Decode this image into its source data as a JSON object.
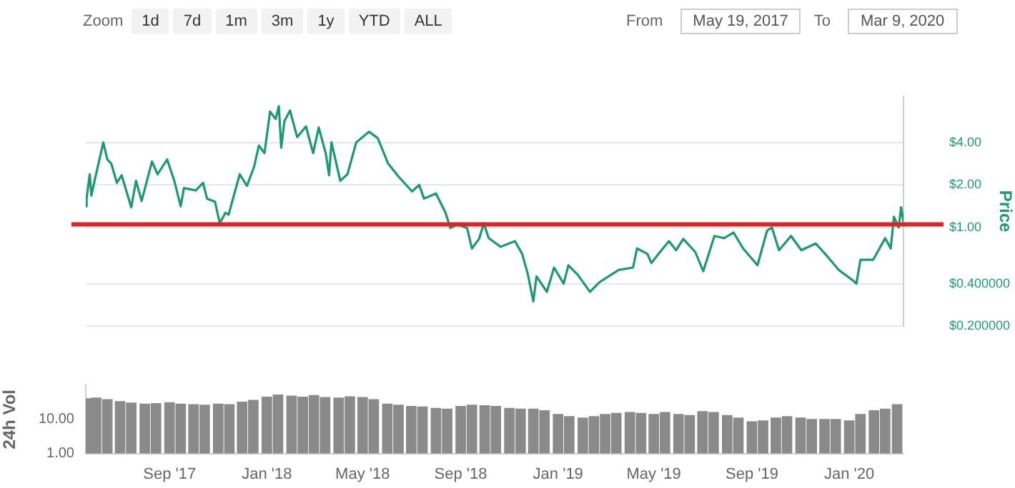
{
  "chart_data": [
    {
      "type": "line",
      "ylabel": "Price",
      "annotations": [
        "Zoom",
        "1d",
        "7d",
        "1m",
        "3m",
        "1y",
        "YTD",
        "ALL",
        "From",
        "May 19, 2017",
        "To",
        "Mar 9, 2020"
      ],
      "xlim": [
        "2017-05-19",
        "2020-03-09"
      ],
      "tick_labels": "y",
      "log": "y",
      "grid": "y",
      "ylim": [
        0.2,
        8.5
      ],
      "yticks": [
        {
          "value": 0.2,
          "label": "$0.200000"
        },
        {
          "value": 0.4,
          "label": "$0.400000"
        },
        {
          "value": 1,
          "label": "$1.00"
        },
        {
          "value": 2,
          "label": "$2.00"
        },
        {
          "value": 4,
          "label": "$4.00"
        }
      ],
      "ref_lines": [
        {
          "axis": "y",
          "value": 1.05,
          "color": "#d9262b"
        }
      ],
      "series": [
        {
          "color": "#1c9a6e",
          "x": [
            "2017-05-19",
            "2017-05-20",
            "2017-05-24",
            "2017-05-26",
            "2017-05-31",
            "2017-06-10",
            "2017-06-15",
            "2017-06-20",
            "2017-06-27",
            "2017-07-03",
            "2017-07-15",
            "2017-07-21",
            "2017-07-28",
            "2017-08-10",
            "2017-08-17",
            "2017-08-29",
            "2017-09-07",
            "2017-09-15",
            "2017-09-19",
            "2017-10-04",
            "2017-10-13",
            "2017-10-18",
            "2017-10-28",
            "2017-11-03",
            "2017-11-10",
            "2017-11-14",
            "2017-11-28",
            "2017-12-07",
            "2017-12-16",
            "2017-12-22",
            "2017-12-29",
            "2018-01-05",
            "2018-01-12",
            "2018-01-16",
            "2018-01-19",
            "2018-01-23",
            "2018-01-30",
            "2018-02-08",
            "2018-02-19",
            "2018-02-28",
            "2018-03-07",
            "2018-03-16",
            "2018-03-20",
            "2018-03-23",
            "2018-04-03",
            "2018-04-12",
            "2018-04-23",
            "2018-05-09",
            "2018-05-20",
            "2018-06-02",
            "2018-06-16",
            "2018-07-02",
            "2018-07-11",
            "2018-07-17",
            "2018-08-01",
            "2018-08-13",
            "2018-08-19",
            "2018-08-28",
            "2018-09-09",
            "2018-09-15",
            "2018-09-24",
            "2018-09-30",
            "2018-10-06",
            "2018-10-21",
            "2018-11-08",
            "2018-11-17",
            "2018-11-24",
            "2018-12-01",
            "2018-12-05",
            "2018-12-18",
            "2018-12-27",
            "2019-01-08",
            "2019-01-14",
            "2019-01-26",
            "2019-02-10",
            "2019-02-22",
            "2019-03-18",
            "2019-04-05",
            "2019-04-10",
            "2019-04-23",
            "2019-04-28",
            "2019-05-07",
            "2019-05-20",
            "2019-05-29",
            "2019-06-07",
            "2019-06-22",
            "2019-07-02",
            "2019-07-16",
            "2019-07-28",
            "2019-08-09",
            "2019-08-21",
            "2019-09-08",
            "2019-09-20",
            "2019-09-26",
            "2019-10-05",
            "2019-10-20",
            "2019-11-02",
            "2019-11-20",
            "2019-12-05",
            "2019-12-19",
            "2020-01-06",
            "2020-01-10",
            "2020-01-15",
            "2020-01-31",
            "2020-02-15",
            "2020-02-22",
            "2020-02-26",
            "2020-03-03",
            "2020-03-06",
            "2020-03-09"
          ],
          "values": [
            1.41,
            1.6,
            2.38,
            1.68,
            2.26,
            4.0,
            3.03,
            2.83,
            2.07,
            2.34,
            1.39,
            2.14,
            1.54,
            2.93,
            2.38,
            3.03,
            2.14,
            1.41,
            1.9,
            1.83,
            2.07,
            1.6,
            1.52,
            1.07,
            1.27,
            1.23,
            2.38,
            1.97,
            2.69,
            3.8,
            3.36,
            6.61,
            5.86,
            7.21,
            3.67,
            5.66,
            6.73,
            4.36,
            5.19,
            3.36,
            5.1,
            3.31,
            2.34,
            4.0,
            2.14,
            2.38,
            4.0,
            4.76,
            4.29,
            2.83,
            2.26,
            1.8,
            2.0,
            1.6,
            1.74,
            1.27,
            0.99,
            1.05,
            0.99,
            0.71,
            0.83,
            1.07,
            0.84,
            0.73,
            0.8,
            0.65,
            0.47,
            0.3,
            0.45,
            0.35,
            0.52,
            0.4,
            0.54,
            0.46,
            0.35,
            0.41,
            0.5,
            0.52,
            0.71,
            0.65,
            0.56,
            0.65,
            0.8,
            0.69,
            0.83,
            0.67,
            0.49,
            0.87,
            0.84,
            0.92,
            0.71,
            0.54,
            0.95,
            1.0,
            0.69,
            0.87,
            0.69,
            0.77,
            0.62,
            0.5,
            0.42,
            0.4,
            0.59,
            0.59,
            0.84,
            0.71,
            1.19,
            1.0,
            1.39,
            1.09
          ]
        }
      ]
    },
    {
      "type": "bar",
      "ylabel": "24h Vol",
      "log": "y",
      "xlim": [
        "2017-05-19",
        "2020-03-09"
      ],
      "xticks": [
        {
          "value": "2017-09-01",
          "label": "Sep '17"
        },
        {
          "value": "2018-01-01",
          "label": "Jan '18"
        },
        {
          "value": "2018-05-01",
          "label": "May '18"
        },
        {
          "value": "2018-09-01",
          "label": "Sep '18"
        },
        {
          "value": "2019-01-01",
          "label": "Jan '19"
        },
        {
          "value": "2019-05-01",
          "label": "May '19"
        },
        {
          "value": "2019-09-01",
          "label": "Sep '19"
        },
        {
          "value": "2020-01-01",
          "label": "Jan '20"
        }
      ],
      "ylim": [
        1,
        100
      ],
      "yticks": [
        {
          "value": 1,
          "label": "1.00"
        },
        {
          "value": 10,
          "label": "10.00"
        }
      ],
      "x": [
        "2017-05-20",
        "2017-06-01",
        "2017-06-15",
        "2017-07-01",
        "2017-07-15",
        "2017-08-01",
        "2017-08-15",
        "2017-09-01",
        "2017-09-15",
        "2017-10-01",
        "2017-10-15",
        "2017-11-01",
        "2017-11-15",
        "2017-12-01",
        "2017-12-15",
        "2018-01-01",
        "2018-01-15",
        "2018-02-01",
        "2018-02-15",
        "2018-03-01",
        "2018-03-15",
        "2018-04-01",
        "2018-04-15",
        "2018-05-01",
        "2018-05-15",
        "2018-06-01",
        "2018-06-15",
        "2018-07-01",
        "2018-07-15",
        "2018-08-01",
        "2018-08-15",
        "2018-09-01",
        "2018-09-15",
        "2018-10-01",
        "2018-10-15",
        "2018-11-01",
        "2018-11-15",
        "2018-12-01",
        "2018-12-15",
        "2019-01-01",
        "2019-01-15",
        "2019-02-01",
        "2019-02-15",
        "2019-03-01",
        "2019-03-15",
        "2019-04-01",
        "2019-04-15",
        "2019-05-01",
        "2019-05-15",
        "2019-06-01",
        "2019-06-15",
        "2019-07-01",
        "2019-07-15",
        "2019-08-01",
        "2019-08-15",
        "2019-09-01",
        "2019-09-15",
        "2019-10-01",
        "2019-10-15",
        "2019-11-01",
        "2019-11-15",
        "2019-12-01",
        "2019-12-15",
        "2020-01-01",
        "2020-01-15",
        "2020-02-01",
        "2020-02-15",
        "2020-03-01"
      ],
      "series": [
        {
          "color": "#8a8a8a",
          "values": [
            40,
            42,
            38,
            33,
            30,
            28,
            29,
            31,
            28,
            27,
            26,
            28,
            27,
            32,
            36,
            45,
            52,
            48,
            45,
            50,
            44,
            42,
            46,
            44,
            38,
            28,
            26,
            24,
            23,
            21,
            20,
            24,
            26,
            25,
            24,
            21,
            20,
            20,
            18,
            14,
            12,
            11,
            12,
            14,
            15,
            16,
            15,
            14,
            16,
            14,
            13,
            17,
            16,
            13,
            11,
            8.5,
            9,
            11,
            12,
            11,
            10,
            10,
            10,
            9,
            14,
            18,
            20,
            27
          ]
        }
      ]
    }
  ]
}
